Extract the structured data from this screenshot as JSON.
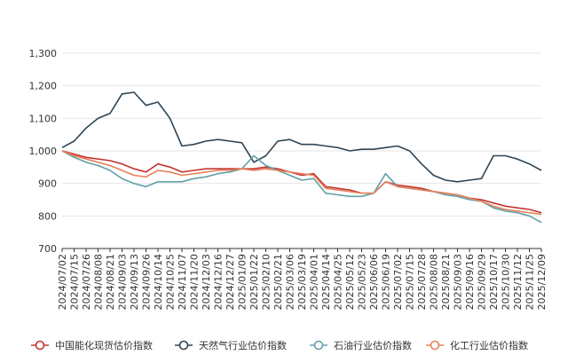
{
  "chart_data": {
    "type": "line",
    "ylim": [
      700,
      1300
    ],
    "y_ticks": [
      700,
      800,
      900,
      "1,000",
      "1,100",
      "1,200",
      "1,300"
    ],
    "x_tick_labels": [
      "2024/07/02",
      "2024/07/15",
      "2024/07/26",
      "2024/08/08",
      "2024/08/21",
      "2024/09/03",
      "2024/09/13",
      "2024/09/26",
      "2024/10/14",
      "2024/10/25",
      "2024/11/07",
      "2024/11/20",
      "2024/12/03",
      "2024/12/16",
      "2024/12/27",
      "2025/01/09",
      "2025/01/22",
      "2025/02/10",
      "2025/02/21",
      "2025/03/06",
      "2025/03/19",
      "2025/04/01",
      "2025/04/14",
      "2025/04/25",
      "2025/05/12",
      "2025/05/23",
      "2025/06/06",
      "2025/06/19",
      "2025/07/02",
      "2025/07/15",
      "2025/07/28",
      "2025/08/08",
      "2025/08/21",
      "2025/09/03",
      "2025/09/16",
      "2025/09/29",
      "2025/10/17",
      "2025/10/30",
      "2025/11/12",
      "2025/11/25",
      "2025/12/09"
    ],
    "x": [
      "2024/07/02",
      "2024/07/15",
      "2024/07/26",
      "2024/08/08",
      "2024/08/21",
      "2024/09/03",
      "2024/09/13",
      "2024/09/26",
      "2024/10/14",
      "2024/10/25",
      "2024/11/07",
      "2024/11/20",
      "2024/12/03",
      "2024/12/16",
      "2024/12/27",
      "2025/01/09",
      "2025/01/22",
      "2025/02/10",
      "2025/02/21",
      "2025/03/06",
      "2025/03/19",
      "2025/04/01",
      "2025/04/14",
      "2025/04/25",
      "2025/05/12",
      "2025/05/23",
      "2025/06/06",
      "2025/06/19",
      "2025/07/02",
      "2025/07/15",
      "2025/07/28",
      "2025/08/08",
      "2025/08/21",
      "2025/09/03",
      "2025/09/16",
      "2025/09/29",
      "2025/10/17",
      "2025/10/30",
      "2025/11/12",
      "2025/11/25",
      "2025/12/09"
    ],
    "series": [
      {
        "name": "中国能化现货估价指数",
        "color": "#c23531",
        "values": [
          1000,
          990,
          980,
          975,
          970,
          960,
          945,
          935,
          960,
          950,
          935,
          940,
          945,
          945,
          945,
          945,
          945,
          950,
          945,
          935,
          925,
          930,
          890,
          885,
          880,
          870,
          870,
          905,
          895,
          890,
          885,
          875,
          870,
          865,
          855,
          850,
          840,
          830,
          825,
          820,
          810
        ]
      },
      {
        "name": "天然气行业估价指数",
        "color": "#2f4554",
        "values": [
          1010,
          1030,
          1070,
          1100,
          1115,
          1175,
          1180,
          1140,
          1150,
          1100,
          1015,
          1020,
          1030,
          1035,
          1030,
          1025,
          965,
          985,
          1030,
          1035,
          1020,
          1020,
          1015,
          1010,
          1000,
          1005,
          1005,
          1010,
          1015,
          1000,
          960,
          925,
          910,
          905,
          910,
          915,
          985,
          985,
          975,
          960,
          940
        ]
      },
      {
        "name": "石油行业估价指数",
        "color": "#61a0a8",
        "values": [
          1000,
          980,
          965,
          955,
          940,
          915,
          900,
          890,
          905,
          905,
          905,
          915,
          920,
          930,
          935,
          945,
          985,
          955,
          940,
          925,
          910,
          915,
          870,
          865,
          860,
          860,
          870,
          930,
          890,
          885,
          880,
          875,
          865,
          860,
          850,
          845,
          825,
          815,
          810,
          800,
          780
        ]
      },
      {
        "name": "化工行业估价指数",
        "color": "#e4825a",
        "values": [
          1000,
          985,
          975,
          965,
          955,
          940,
          925,
          920,
          940,
          935,
          925,
          930,
          935,
          940,
          940,
          945,
          940,
          945,
          940,
          935,
          930,
          925,
          885,
          880,
          875,
          870,
          870,
          905,
          890,
          885,
          880,
          875,
          870,
          865,
          855,
          845,
          830,
          820,
          815,
          810,
          805
        ]
      }
    ]
  }
}
